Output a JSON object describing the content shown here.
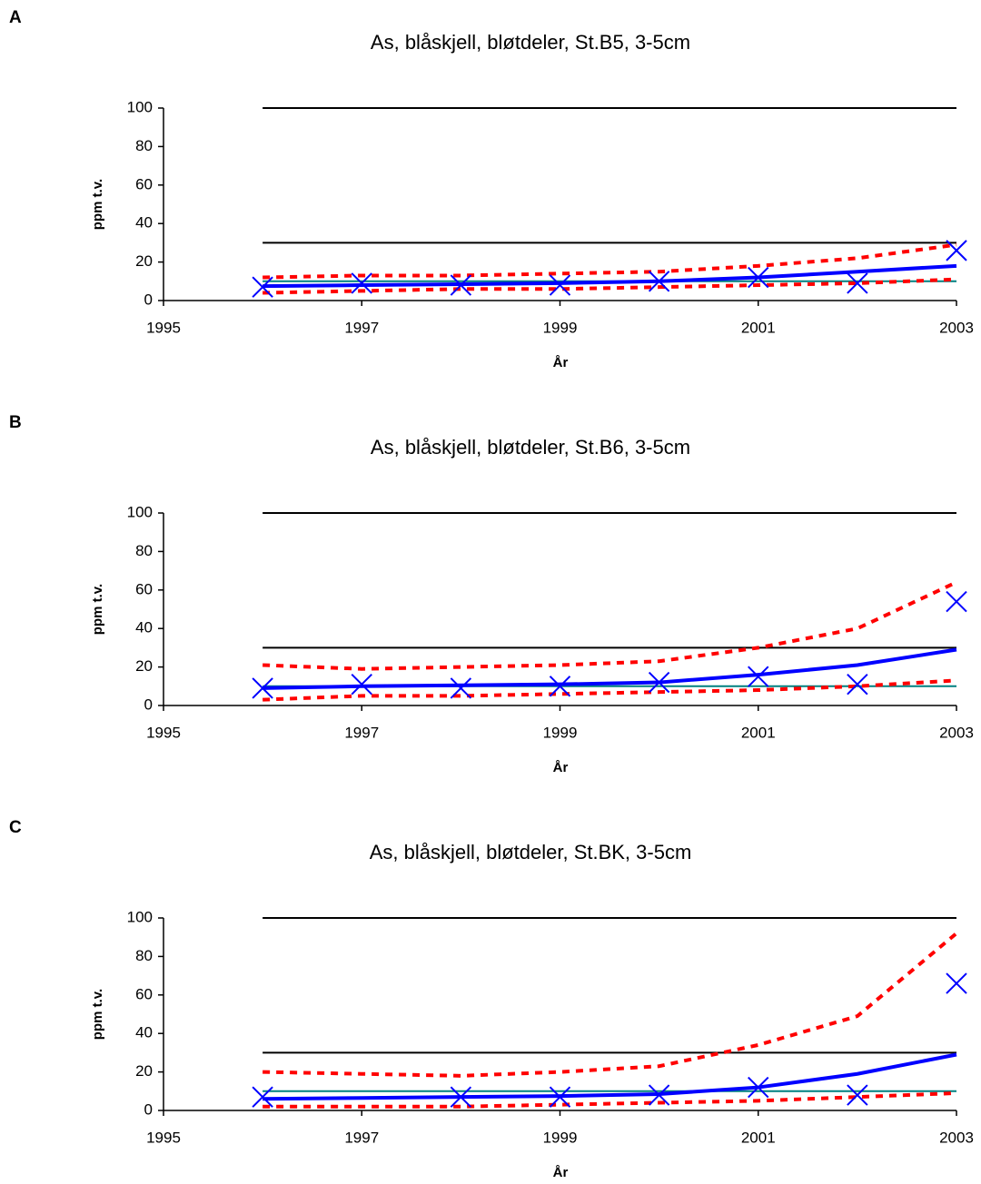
{
  "chart_data": [
    {
      "type": "line",
      "panel": "A",
      "title": "As, blåskjell, bløtdeler, St.B5, 3-5cm",
      "x_label": "År",
      "y_label": "ppm t.v.",
      "x": [
        1996,
        1997,
        1998,
        1999,
        2000,
        2001,
        2002,
        2003
      ],
      "xlim": [
        1995,
        2003
      ],
      "xticks": [
        1995,
        1997,
        1999,
        2001,
        2003
      ],
      "ylim": [
        0,
        100
      ],
      "yticks": [
        0,
        20,
        40,
        60,
        80,
        100
      ],
      "series": [
        {
          "color": "#000000",
          "style": "solid",
          "values": [
            100,
            100,
            100,
            100,
            100,
            100,
            100,
            100
          ]
        },
        {
          "color": "#000000",
          "style": "solid",
          "values": [
            30,
            30,
            30,
            30,
            30,
            30,
            30,
            30
          ]
        },
        {
          "color": "#008080",
          "style": "solid",
          "values": [
            10,
            10,
            10,
            10,
            10,
            10,
            10,
            10
          ]
        },
        {
          "color": "#ff0000",
          "style": "dotted",
          "values": [
            12,
            13,
            13,
            14,
            15,
            18,
            22,
            29
          ]
        },
        {
          "color": "#ff0000",
          "style": "dotted",
          "values": [
            4,
            5,
            6,
            6,
            7,
            8,
            9,
            11
          ]
        },
        {
          "color": "#0000ff",
          "style": "thick",
          "values": [
            7.5,
            8,
            8.5,
            9,
            10,
            12,
            15,
            18
          ]
        },
        {
          "color": "#0000ff",
          "style": "marker",
          "values": [
            7,
            9,
            8,
            8,
            10,
            12,
            9,
            26
          ]
        }
      ]
    },
    {
      "type": "line",
      "panel": "B",
      "title": "As, blåskjell, bløtdeler, St.B6, 3-5cm",
      "x_label": "År",
      "y_label": "ppm t.v.",
      "x": [
        1996,
        1997,
        1998,
        1999,
        2000,
        2001,
        2002,
        2003
      ],
      "xlim": [
        1995,
        2003
      ],
      "xticks": [
        1995,
        1997,
        1999,
        2001,
        2003
      ],
      "ylim": [
        0,
        100
      ],
      "yticks": [
        0,
        20,
        40,
        60,
        80,
        100
      ],
      "series": [
        {
          "color": "#000000",
          "style": "solid",
          "values": [
            100,
            100,
            100,
            100,
            100,
            100,
            100,
            100
          ]
        },
        {
          "color": "#000000",
          "style": "solid",
          "values": [
            30,
            30,
            30,
            30,
            30,
            30,
            30,
            30
          ]
        },
        {
          "color": "#008080",
          "style": "solid",
          "values": [
            10,
            10,
            10,
            10,
            10,
            10,
            10,
            10
          ]
        },
        {
          "color": "#ff0000",
          "style": "dotted",
          "values": [
            21,
            19,
            20,
            21,
            23,
            30,
            40,
            64
          ]
        },
        {
          "color": "#ff0000",
          "style": "dotted",
          "values": [
            3,
            5,
            5,
            6,
            7,
            8,
            10,
            13
          ]
        },
        {
          "color": "#0000ff",
          "style": "thick",
          "values": [
            9,
            10,
            10.5,
            11,
            12,
            16,
            21,
            29
          ]
        },
        {
          "color": "#0000ff",
          "style": "marker",
          "values": [
            9,
            11,
            9,
            10,
            12,
            15,
            11,
            54
          ]
        }
      ]
    },
    {
      "type": "line",
      "panel": "C",
      "title": "As, blåskjell, bløtdeler, St.BK, 3-5cm",
      "x_label": "År",
      "y_label": "ppm t.v.",
      "x": [
        1996,
        1997,
        1998,
        1999,
        2000,
        2001,
        2002,
        2003
      ],
      "xlim": [
        1995,
        2003
      ],
      "xticks": [
        1995,
        1997,
        1999,
        2001,
        2003
      ],
      "ylim": [
        0,
        100
      ],
      "yticks": [
        0,
        20,
        40,
        60,
        80,
        100
      ],
      "series": [
        {
          "color": "#000000",
          "style": "solid",
          "values": [
            100,
            100,
            100,
            100,
            100,
            100,
            100,
            100
          ]
        },
        {
          "color": "#000000",
          "style": "solid",
          "values": [
            30,
            30,
            30,
            30,
            30,
            30,
            30,
            30
          ]
        },
        {
          "color": "#008080",
          "style": "solid",
          "values": [
            10,
            10,
            10,
            10,
            10,
            10,
            10,
            10
          ]
        },
        {
          "color": "#ff0000",
          "style": "dotted",
          "values": [
            20,
            19,
            18,
            20,
            23,
            34,
            49,
            92
          ]
        },
        {
          "color": "#ff0000",
          "style": "dotted",
          "values": [
            2,
            2,
            2,
            3,
            4,
            5,
            7,
            9
          ]
        },
        {
          "color": "#0000ff",
          "style": "thick",
          "values": [
            6,
            6.5,
            7,
            7.5,
            8.5,
            12,
            19,
            29
          ]
        },
        {
          "color": "#0000ff",
          "style": "marker",
          "values": [
            7,
            null,
            7,
            7,
            8,
            12,
            8,
            66
          ]
        }
      ]
    }
  ]
}
